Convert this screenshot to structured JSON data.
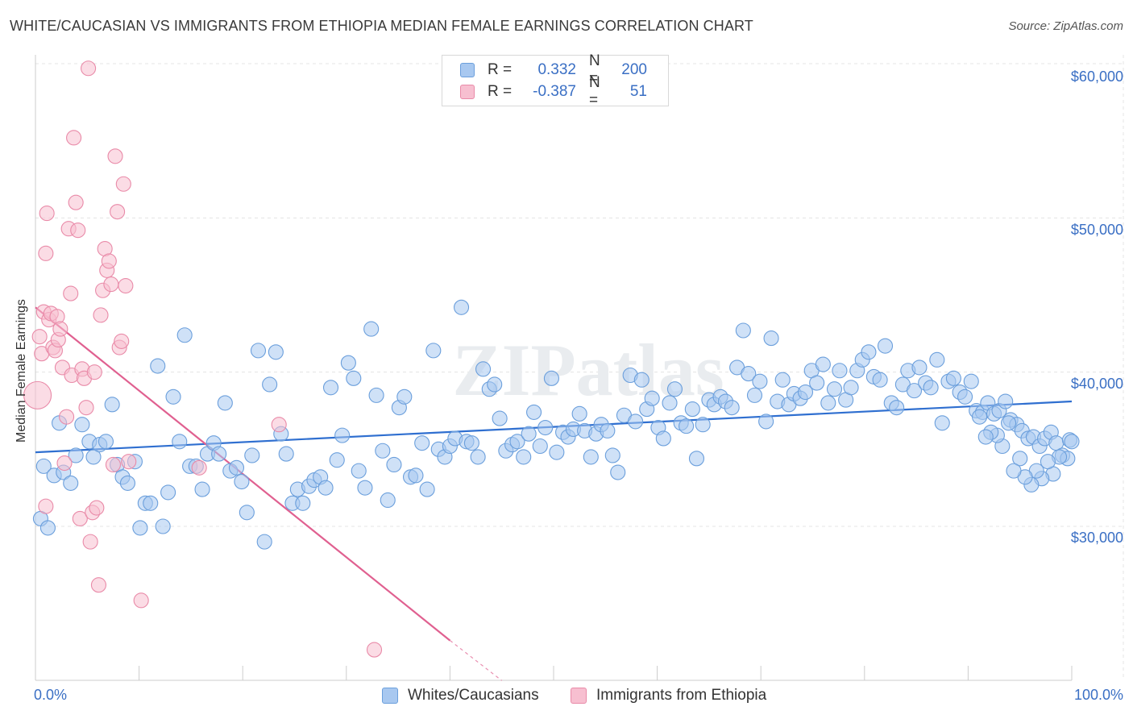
{
  "title": "WHITE/CAUCASIAN VS IMMIGRANTS FROM ETHIOPIA MEDIAN FEMALE EARNINGS CORRELATION CHART",
  "source": "Source: ZipAtlas.com",
  "watermark": "ZIPatlas",
  "legend": {
    "rows": [
      {
        "r_label": "R =",
        "r_value": "0.332",
        "n_label": "N =",
        "n_value": "200",
        "color": "#a8c8f0",
        "border": "#6b9fdc"
      },
      {
        "r_label": "R =",
        "r_value": "-0.387",
        "n_label": "N =",
        "n_value": "51",
        "color": "#f7bfd0",
        "border": "#e98aa8"
      }
    ]
  },
  "bottom_legend": [
    {
      "label": "Whites/Caucasians",
      "color": "#a8c8f0",
      "border": "#6b9fdc"
    },
    {
      "label": "Immigrants from Ethiopia",
      "color": "#f7bfd0",
      "border": "#e98aa8"
    }
  ],
  "axis": {
    "x_min_label": "0.0%",
    "x_max_label": "100.0%",
    "y_label": "Median Female Earnings",
    "y_ticks": [
      "$30,000",
      "$40,000",
      "$50,000",
      "$60,000"
    ]
  },
  "chart_data": {
    "type": "scatter",
    "title": "WHITE/CAUCASIAN VS IMMIGRANTS FROM ETHIOPIA MEDIAN FEMALE EARNINGS CORRELATION CHART",
    "xlabel": "",
    "ylabel": "Median Female Earnings",
    "xlim": [
      0,
      100
    ],
    "ylim": [
      21000,
      62000
    ],
    "y_ticks": [
      30000,
      40000,
      50000,
      60000
    ],
    "grid": true,
    "series": [
      {
        "name": "Whites/Caucasians",
        "color": "#a8c8f0",
        "stroke": "#6b9fdc",
        "trend": {
          "x": [
            0,
            100
          ],
          "y": [
            34800,
            38100
          ],
          "color": "#2f6fd0"
        },
        "points": [
          [
            0.5,
            30500
          ],
          [
            0.8,
            33900
          ],
          [
            1.2,
            29900
          ],
          [
            1.8,
            33300
          ],
          [
            2.3,
            36700
          ],
          [
            2.7,
            33500
          ],
          [
            3.4,
            32800
          ],
          [
            3.9,
            34600
          ],
          [
            4.5,
            36600
          ],
          [
            5.2,
            35500
          ],
          [
            5.6,
            34500
          ],
          [
            6.2,
            35300
          ],
          [
            6.8,
            35500
          ],
          [
            7.4,
            37900
          ],
          [
            7.9,
            34000
          ],
          [
            8.4,
            33200
          ],
          [
            8.9,
            32800
          ],
          [
            9.6,
            34200
          ],
          [
            10.1,
            29900
          ],
          [
            10.6,
            31500
          ],
          [
            11.1,
            31500
          ],
          [
            11.8,
            40400
          ],
          [
            12.3,
            30000
          ],
          [
            12.8,
            32200
          ],
          [
            13.3,
            38400
          ],
          [
            13.9,
            35500
          ],
          [
            14.4,
            42400
          ],
          [
            14.9,
            33900
          ],
          [
            15.5,
            33900
          ],
          [
            16.1,
            32400
          ],
          [
            16.6,
            34700
          ],
          [
            17.2,
            35400
          ],
          [
            17.7,
            34700
          ],
          [
            18.3,
            38000
          ],
          [
            18.8,
            33600
          ],
          [
            19.4,
            33800
          ],
          [
            19.9,
            32900
          ],
          [
            20.4,
            30900
          ],
          [
            20.9,
            34600
          ],
          [
            21.5,
            41400
          ],
          [
            22.1,
            29000
          ],
          [
            23.2,
            41300
          ],
          [
            22.6,
            39200
          ],
          [
            23.7,
            36000
          ],
          [
            24.2,
            34700
          ],
          [
            24.8,
            31500
          ],
          [
            25.3,
            32400
          ],
          [
            25.8,
            31500
          ],
          [
            26.4,
            32600
          ],
          [
            26.9,
            33000
          ],
          [
            27.5,
            33200
          ],
          [
            28.0,
            32500
          ],
          [
            28.5,
            39000
          ],
          [
            29.1,
            34300
          ],
          [
            29.6,
            35900
          ],
          [
            30.2,
            40600
          ],
          [
            30.7,
            39600
          ],
          [
            31.2,
            33600
          ],
          [
            31.8,
            32500
          ],
          [
            32.4,
            42800
          ],
          [
            32.9,
            38500
          ],
          [
            33.5,
            34900
          ],
          [
            34.0,
            31700
          ],
          [
            34.6,
            34000
          ],
          [
            35.1,
            37700
          ],
          [
            35.6,
            38400
          ],
          [
            36.2,
            33200
          ],
          [
            36.7,
            33300
          ],
          [
            37.3,
            35400
          ],
          [
            37.8,
            32400
          ],
          [
            38.4,
            41400
          ],
          [
            38.9,
            35000
          ],
          [
            39.5,
            34500
          ],
          [
            40.0,
            35200
          ],
          [
            40.5,
            35700
          ],
          [
            41.1,
            44200
          ],
          [
            41.6,
            35500
          ],
          [
            42.1,
            35400
          ],
          [
            42.7,
            34500
          ],
          [
            43.2,
            40200
          ],
          [
            43.8,
            38900
          ],
          [
            44.3,
            39200
          ],
          [
            44.8,
            37000
          ],
          [
            45.4,
            34900
          ],
          [
            46.0,
            35300
          ],
          [
            46.5,
            35500
          ],
          [
            47.1,
            34500
          ],
          [
            47.6,
            36000
          ],
          [
            48.1,
            37400
          ],
          [
            48.7,
            35200
          ],
          [
            49.2,
            36400
          ],
          [
            49.8,
            39600
          ],
          [
            50.3,
            34800
          ],
          [
            50.9,
            36100
          ],
          [
            51.4,
            35800
          ],
          [
            51.9,
            36300
          ],
          [
            52.5,
            37300
          ],
          [
            53.0,
            36200
          ],
          [
            53.6,
            34500
          ],
          [
            54.1,
            36000
          ],
          [
            54.6,
            36600
          ],
          [
            55.2,
            36200
          ],
          [
            55.7,
            34600
          ],
          [
            56.2,
            33500
          ],
          [
            56.8,
            37200
          ],
          [
            57.4,
            39800
          ],
          [
            57.9,
            36800
          ],
          [
            58.5,
            39500
          ],
          [
            59.0,
            37600
          ],
          [
            59.5,
            38300
          ],
          [
            60.1,
            36400
          ],
          [
            60.6,
            35700
          ],
          [
            61.2,
            38000
          ],
          [
            61.7,
            38900
          ],
          [
            62.3,
            36700
          ],
          [
            62.8,
            36500
          ],
          [
            63.4,
            37600
          ],
          [
            63.8,
            34400
          ],
          [
            64.4,
            36600
          ],
          [
            65.0,
            38200
          ],
          [
            65.5,
            37900
          ],
          [
            66.1,
            38400
          ],
          [
            66.6,
            38100
          ],
          [
            67.2,
            37700
          ],
          [
            67.7,
            40300
          ],
          [
            68.3,
            42700
          ],
          [
            68.8,
            39900
          ],
          [
            69.4,
            38500
          ],
          [
            69.9,
            39400
          ],
          [
            70.5,
            36800
          ],
          [
            71.0,
            42200
          ],
          [
            71.6,
            38100
          ],
          [
            72.1,
            39500
          ],
          [
            72.7,
            37900
          ],
          [
            73.2,
            38600
          ],
          [
            73.8,
            38300
          ],
          [
            74.3,
            38700
          ],
          [
            74.9,
            40100
          ],
          [
            75.4,
            39300
          ],
          [
            76.0,
            40500
          ],
          [
            76.5,
            38000
          ],
          [
            77.1,
            38900
          ],
          [
            77.6,
            40100
          ],
          [
            78.2,
            38200
          ],
          [
            78.7,
            39000
          ],
          [
            79.3,
            40100
          ],
          [
            79.8,
            40800
          ],
          [
            80.4,
            41300
          ],
          [
            80.9,
            39700
          ],
          [
            81.5,
            39500
          ],
          [
            82.0,
            41700
          ],
          [
            82.6,
            38000
          ],
          [
            83.1,
            37700
          ],
          [
            83.7,
            39200
          ],
          [
            84.2,
            40100
          ],
          [
            84.8,
            38800
          ],
          [
            85.3,
            40300
          ],
          [
            85.9,
            39300
          ],
          [
            86.4,
            39000
          ],
          [
            87.0,
            40800
          ],
          [
            87.5,
            36700
          ],
          [
            88.1,
            39400
          ],
          [
            88.6,
            39600
          ],
          [
            89.2,
            38700
          ],
          [
            89.7,
            38400
          ],
          [
            90.3,
            39400
          ],
          [
            90.8,
            37500
          ],
          [
            91.4,
            37400
          ],
          [
            91.9,
            38000
          ],
          [
            92.5,
            37300
          ],
          [
            93.0,
            37500
          ],
          [
            93.6,
            38100
          ],
          [
            94.1,
            36900
          ],
          [
            94.7,
            36600
          ],
          [
            95.2,
            36200
          ],
          [
            95.8,
            35700
          ],
          [
            96.3,
            35800
          ],
          [
            96.9,
            35200
          ],
          [
            97.4,
            35700
          ],
          [
            98.0,
            36100
          ],
          [
            98.5,
            35400
          ],
          [
            99.1,
            34600
          ],
          [
            99.6,
            34400
          ],
          [
            99.8,
            35600
          ],
          [
            100.0,
            35500
          ],
          [
            98.8,
            34500
          ],
          [
            98.2,
            33400
          ],
          [
            97.7,
            34200
          ],
          [
            97.1,
            33100
          ],
          [
            96.6,
            33600
          ],
          [
            96.1,
            32700
          ],
          [
            95.5,
            33200
          ],
          [
            95.0,
            34400
          ],
          [
            94.4,
            33600
          ],
          [
            93.9,
            36700
          ],
          [
            93.3,
            35200
          ],
          [
            92.8,
            35900
          ],
          [
            92.2,
            36100
          ],
          [
            91.7,
            35800
          ],
          [
            91.1,
            37100
          ]
        ]
      },
      {
        "name": "Immigrants from Ethiopia",
        "color": "#f7bfd0",
        "stroke": "#e98aa8",
        "trend": {
          "x": [
            0,
            40
          ],
          "y": [
            44200,
            22600
          ],
          "dash_to": [
            45,
            20000
          ],
          "color": "#e06090"
        },
        "points": [
          [
            0.2,
            38500
          ],
          [
            0.4,
            42300
          ],
          [
            0.6,
            41200
          ],
          [
            0.8,
            43900
          ],
          [
            1.0,
            47700
          ],
          [
            1.1,
            50300
          ],
          [
            1.3,
            43400
          ],
          [
            1.5,
            43800
          ],
          [
            1.7,
            41600
          ],
          [
            1.9,
            41400
          ],
          [
            2.1,
            43600
          ],
          [
            2.2,
            42100
          ],
          [
            2.4,
            42800
          ],
          [
            2.6,
            40300
          ],
          [
            2.8,
            34100
          ],
          [
            3.0,
            37100
          ],
          [
            3.2,
            49300
          ],
          [
            3.4,
            45100
          ],
          [
            3.5,
            39800
          ],
          [
            3.7,
            55200
          ],
          [
            3.9,
            51000
          ],
          [
            4.1,
            49200
          ],
          [
            4.3,
            30500
          ],
          [
            4.5,
            40200
          ],
          [
            4.7,
            39600
          ],
          [
            4.9,
            37700
          ],
          [
            5.1,
            59700
          ],
          [
            5.3,
            29000
          ],
          [
            5.5,
            30900
          ],
          [
            5.7,
            40000
          ],
          [
            5.9,
            31200
          ],
          [
            6.1,
            26200
          ],
          [
            6.3,
            43700
          ],
          [
            6.5,
            45300
          ],
          [
            6.7,
            48000
          ],
          [
            6.9,
            46600
          ],
          [
            7.1,
            47200
          ],
          [
            7.3,
            45700
          ],
          [
            7.5,
            34000
          ],
          [
            7.7,
            54000
          ],
          [
            7.9,
            50400
          ],
          [
            8.1,
            41600
          ],
          [
            8.3,
            42000
          ],
          [
            8.5,
            52200
          ],
          [
            8.7,
            45600
          ],
          [
            9.0,
            34200
          ],
          [
            10.2,
            25200
          ],
          [
            15.8,
            33800
          ],
          [
            23.5,
            36600
          ],
          [
            32.7,
            22000
          ],
          [
            1.0,
            31300
          ]
        ]
      }
    ]
  }
}
